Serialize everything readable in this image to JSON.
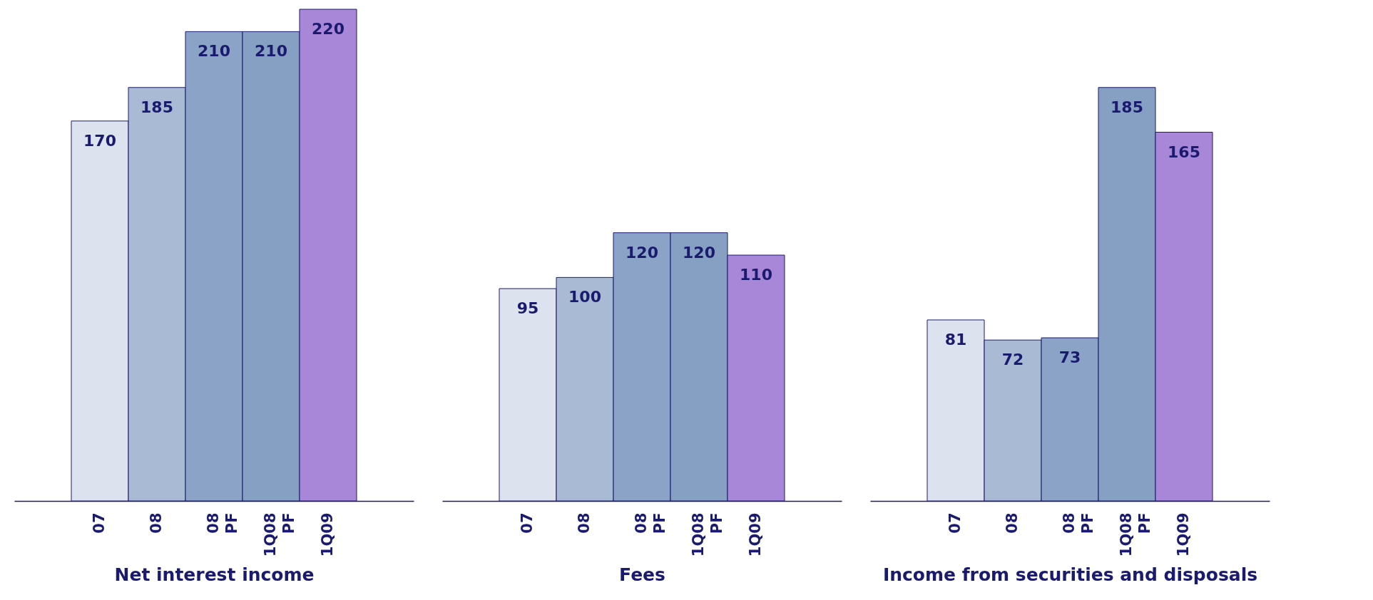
{
  "chart_data": [
    {
      "type": "bar",
      "xlabel": "Net interest income",
      "categories": [
        "07",
        "08",
        "08\nPF",
        "1Q08\nPF",
        "1Q09"
      ],
      "values": [
        170,
        185,
        210,
        210,
        220
      ],
      "colors": [
        "#dde3ee",
        "#a9bbd4",
        "#8aa3c6",
        "#86a0c4",
        "#a886d8"
      ],
      "data_labels": true,
      "tick_labels": "x"
    },
    {
      "type": "bar",
      "xlabel": "Fees",
      "categories": [
        "07",
        "08",
        "08\nPF",
        "1Q08\nPF",
        "1Q09"
      ],
      "values": [
        95,
        100,
        120,
        120,
        110
      ],
      "colors": [
        "#dde3ee",
        "#a9bbd4",
        "#8aa3c6",
        "#86a0c4",
        "#a886d8"
      ],
      "data_labels": true,
      "tick_labels": "x"
    },
    {
      "type": "bar",
      "xlabel": "Income from securities and disposals",
      "categories": [
        "07",
        "08",
        "08\nPF",
        "1Q08\nPF",
        "1Q09"
      ],
      "values": [
        81,
        72,
        73,
        185,
        165
      ],
      "colors": [
        "#dde3ee",
        "#a9bbd4",
        "#8aa3c6",
        "#86a0c4",
        "#a886d8"
      ],
      "data_labels": true,
      "tick_labels": "x"
    }
  ]
}
